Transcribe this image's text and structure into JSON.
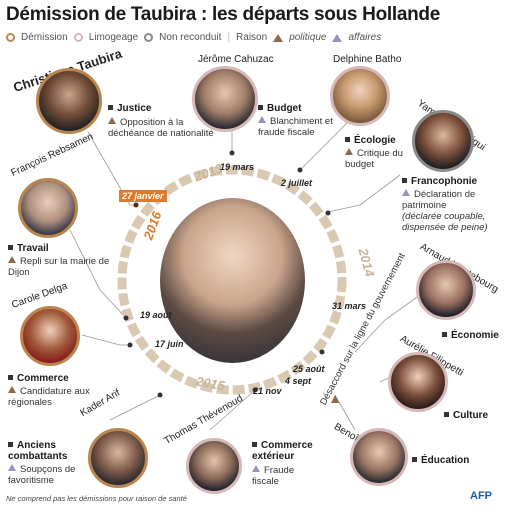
{
  "title": "Démission de Taubira : les départs sous Hollande",
  "legend": {
    "demission": "Démission",
    "limogeage": "Limogeage",
    "non_reconduit": "Non reconduit",
    "raison": "Raison",
    "politique": "politique",
    "affaires": "affaires"
  },
  "colors": {
    "demission": "#b8864e",
    "limogeage": "#d7b8b8",
    "non_reconduit": "#8a8a8a",
    "politique": "#8b6a4e",
    "affaires": "#9c8fc4",
    "ring": "#d9c8b2",
    "date_badge": "#e07a2a"
  },
  "ministers": [
    {
      "name": "Christiane Taubira",
      "dept": "Justice",
      "reason": "Opposition à la déchéance de nationalité",
      "reason_type": "politique"
    },
    {
      "name": "Jérôme Cahuzac",
      "dept": "Budget",
      "reason": "Blanchiment et fraude fiscale",
      "reason_type": "affaires"
    },
    {
      "name": "Delphine Batho",
      "dept": "Écologie",
      "reason": "Critique du budget",
      "reason_type": "politique"
    },
    {
      "name": "Yamina Benguigui",
      "dept": "Francophonie",
      "reason": "Déclaration de patrimoine",
      "reason_note": "(déclarée coupable, dispensée de peine)",
      "reason_type": "affaires"
    },
    {
      "name": "François Rebsamen",
      "dept": "Travail",
      "reason": "Repli sur la mairie de Dijon",
      "reason_type": "politique"
    },
    {
      "name": "Arnaud Montebourg",
      "dept": "Économie"
    },
    {
      "name": "Aurélie Filippetti",
      "dept": "Culture"
    },
    {
      "name": "Benoît Hamon",
      "dept": "Éducation"
    },
    {
      "name": "Carole Delga",
      "dept": "Commerce",
      "reason": "Candidature aux régionales",
      "reason_type": "politique"
    },
    {
      "name": "Kader Arif",
      "dept": "Anciens combattants",
      "reason": "Soupçons de favoritisme",
      "reason_type": "affaires"
    },
    {
      "name": "Thomas Thévenoud",
      "dept": "Commerce extérieur",
      "reason": "Fraude fiscale",
      "reason_type": "affaires"
    }
  ],
  "group_reason": "Désaccord sur la ligne du gouvernement",
  "dates": {
    "taubira": "27 janvier",
    "cahuzac": "19 mars",
    "batho": "2 juillet",
    "benguigui": "31 mars",
    "montebourg_group": "25 août",
    "thevenoud": "4 sept",
    "arif": "21 nov",
    "delga": "17 juin",
    "rebsamen": "19 août"
  },
  "years": [
    "2013",
    "2014",
    "2015",
    "2016"
  ],
  "footnote": "Ne comprend pas les démissions pour raison de santé",
  "source": "AFP"
}
